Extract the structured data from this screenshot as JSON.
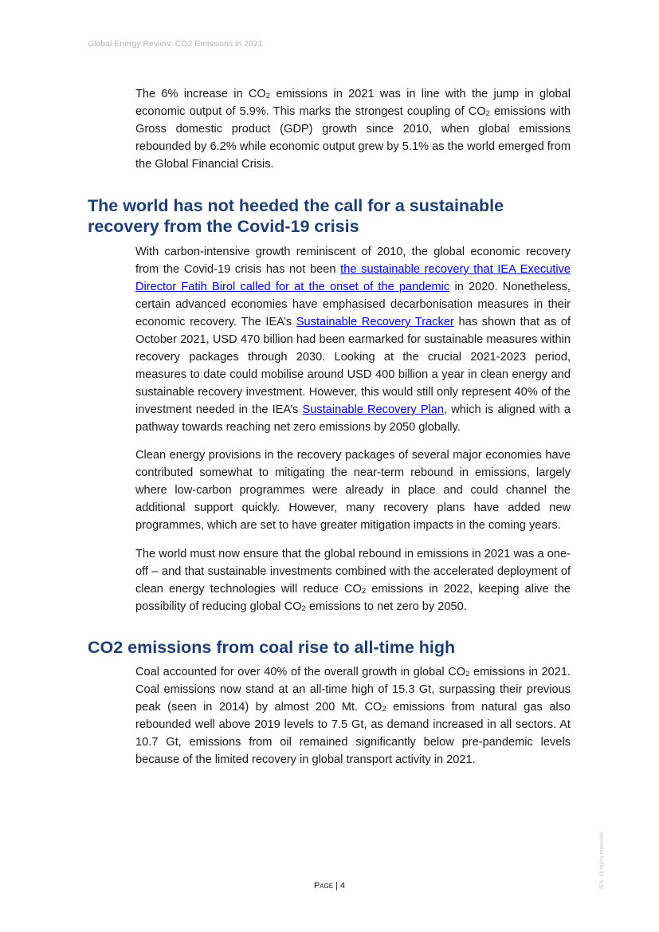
{
  "header": {
    "title": "Global Energy Review: CO2 Emissions in 2021"
  },
  "paragraphs": [
    [
      {
        "t": "The 6% increase in CO"
      },
      {
        "t": "2",
        "sub": true
      },
      {
        "t": " emissions in 2021 was in line with the jump in global economic output of 5.9%. This marks the strongest coupling of CO"
      },
      {
        "t": "2",
        "sub": true
      },
      {
        "t": " emissions with Gross domestic product (GDP) growth since 2010, when global emissions rebounded by 6.2% while economic output grew by 5.1% as the world emerged from the Global Financial Crisis."
      }
    ],
    [
      {
        "t": "With carbon-intensive growth reminiscent of 2010, the global economic recovery from the Covid-19 crisis has not been "
      },
      {
        "t": "the sustainable recovery that IEA Executive Director Fatih Birol called for at the onset of the pandemic",
        "link": true
      },
      {
        "t": " in 2020. Nonetheless, certain advanced economies have emphasised decarbonisation measures in their economic recovery. The IEA’s "
      },
      {
        "t": "Sustainable Recovery Tracker",
        "link": true
      },
      {
        "t": " has shown that as of October 2021, USD 470 billion had been earmarked for sustainable measures within recovery packages through 2030. Looking at the crucial 2021-2023 period, measures to date could mobilise around USD 400 billion a year in clean energy and sustainable recovery investment. However, this would still only represent 40% of the investment needed in the IEA’s "
      },
      {
        "t": "Sustainable Recovery Plan",
        "link": true
      },
      {
        "t": ", which is aligned with a pathway towards reaching net zero emissions by 2050 globally."
      }
    ],
    [
      {
        "t": "Clean energy provisions in the recovery packages of several major economies have contributed somewhat to mitigating the near-term rebound in emissions, largely where low-carbon programmes were already in place and could channel the additional support quickly. However, many recovery plans have added new programmes, which are set to have greater mitigation impacts in the coming years."
      }
    ],
    [
      {
        "t": "The world must now ensure that the global rebound in emissions in 2021 was a one-off – and that sustainable investments combined with the accelerated deployment of clean energy technologies will reduce CO"
      },
      {
        "t": "2",
        "sub": true
      },
      {
        "t": " emissions in 2022, keeping alive the possibility of reducing global CO"
      },
      {
        "t": "2",
        "sub": true
      },
      {
        "t": " emissions to net zero by 2050."
      }
    ],
    [
      {
        "t": "Coal accounted for over 40% of the overall growth in global CO"
      },
      {
        "t": "2",
        "sub": true
      },
      {
        "t": " emissions in 2021. Coal emissions now stand at an all-time high of 15.3 Gt, surpassing their previous peak (seen in 2014) by almost 200 Mt. CO"
      },
      {
        "t": "2",
        "sub": true
      },
      {
        "t": " emissions from natural gas also rebounded well above 2019 levels to 7.5 Gt, as demand increased in all sectors. At 10.7 Gt, emissions from oil remained significantly below pre-pandemic levels because of the limited recovery in global transport activity in 2021."
      }
    ]
  ],
  "headings": [
    "The world has not heeded the call for a sustainable recovery from the Covid-19 crisis",
    "CO2 emissions from coal rise to all-time high"
  ],
  "footer": {
    "page_label": "Page",
    "separator": " | ",
    "page_number": "4"
  },
  "rights": "IEA. All rights reserved.",
  "colors": {
    "heading": "#1f3f73",
    "link": "#0000ee",
    "header_text": "#b4b4b4"
  }
}
